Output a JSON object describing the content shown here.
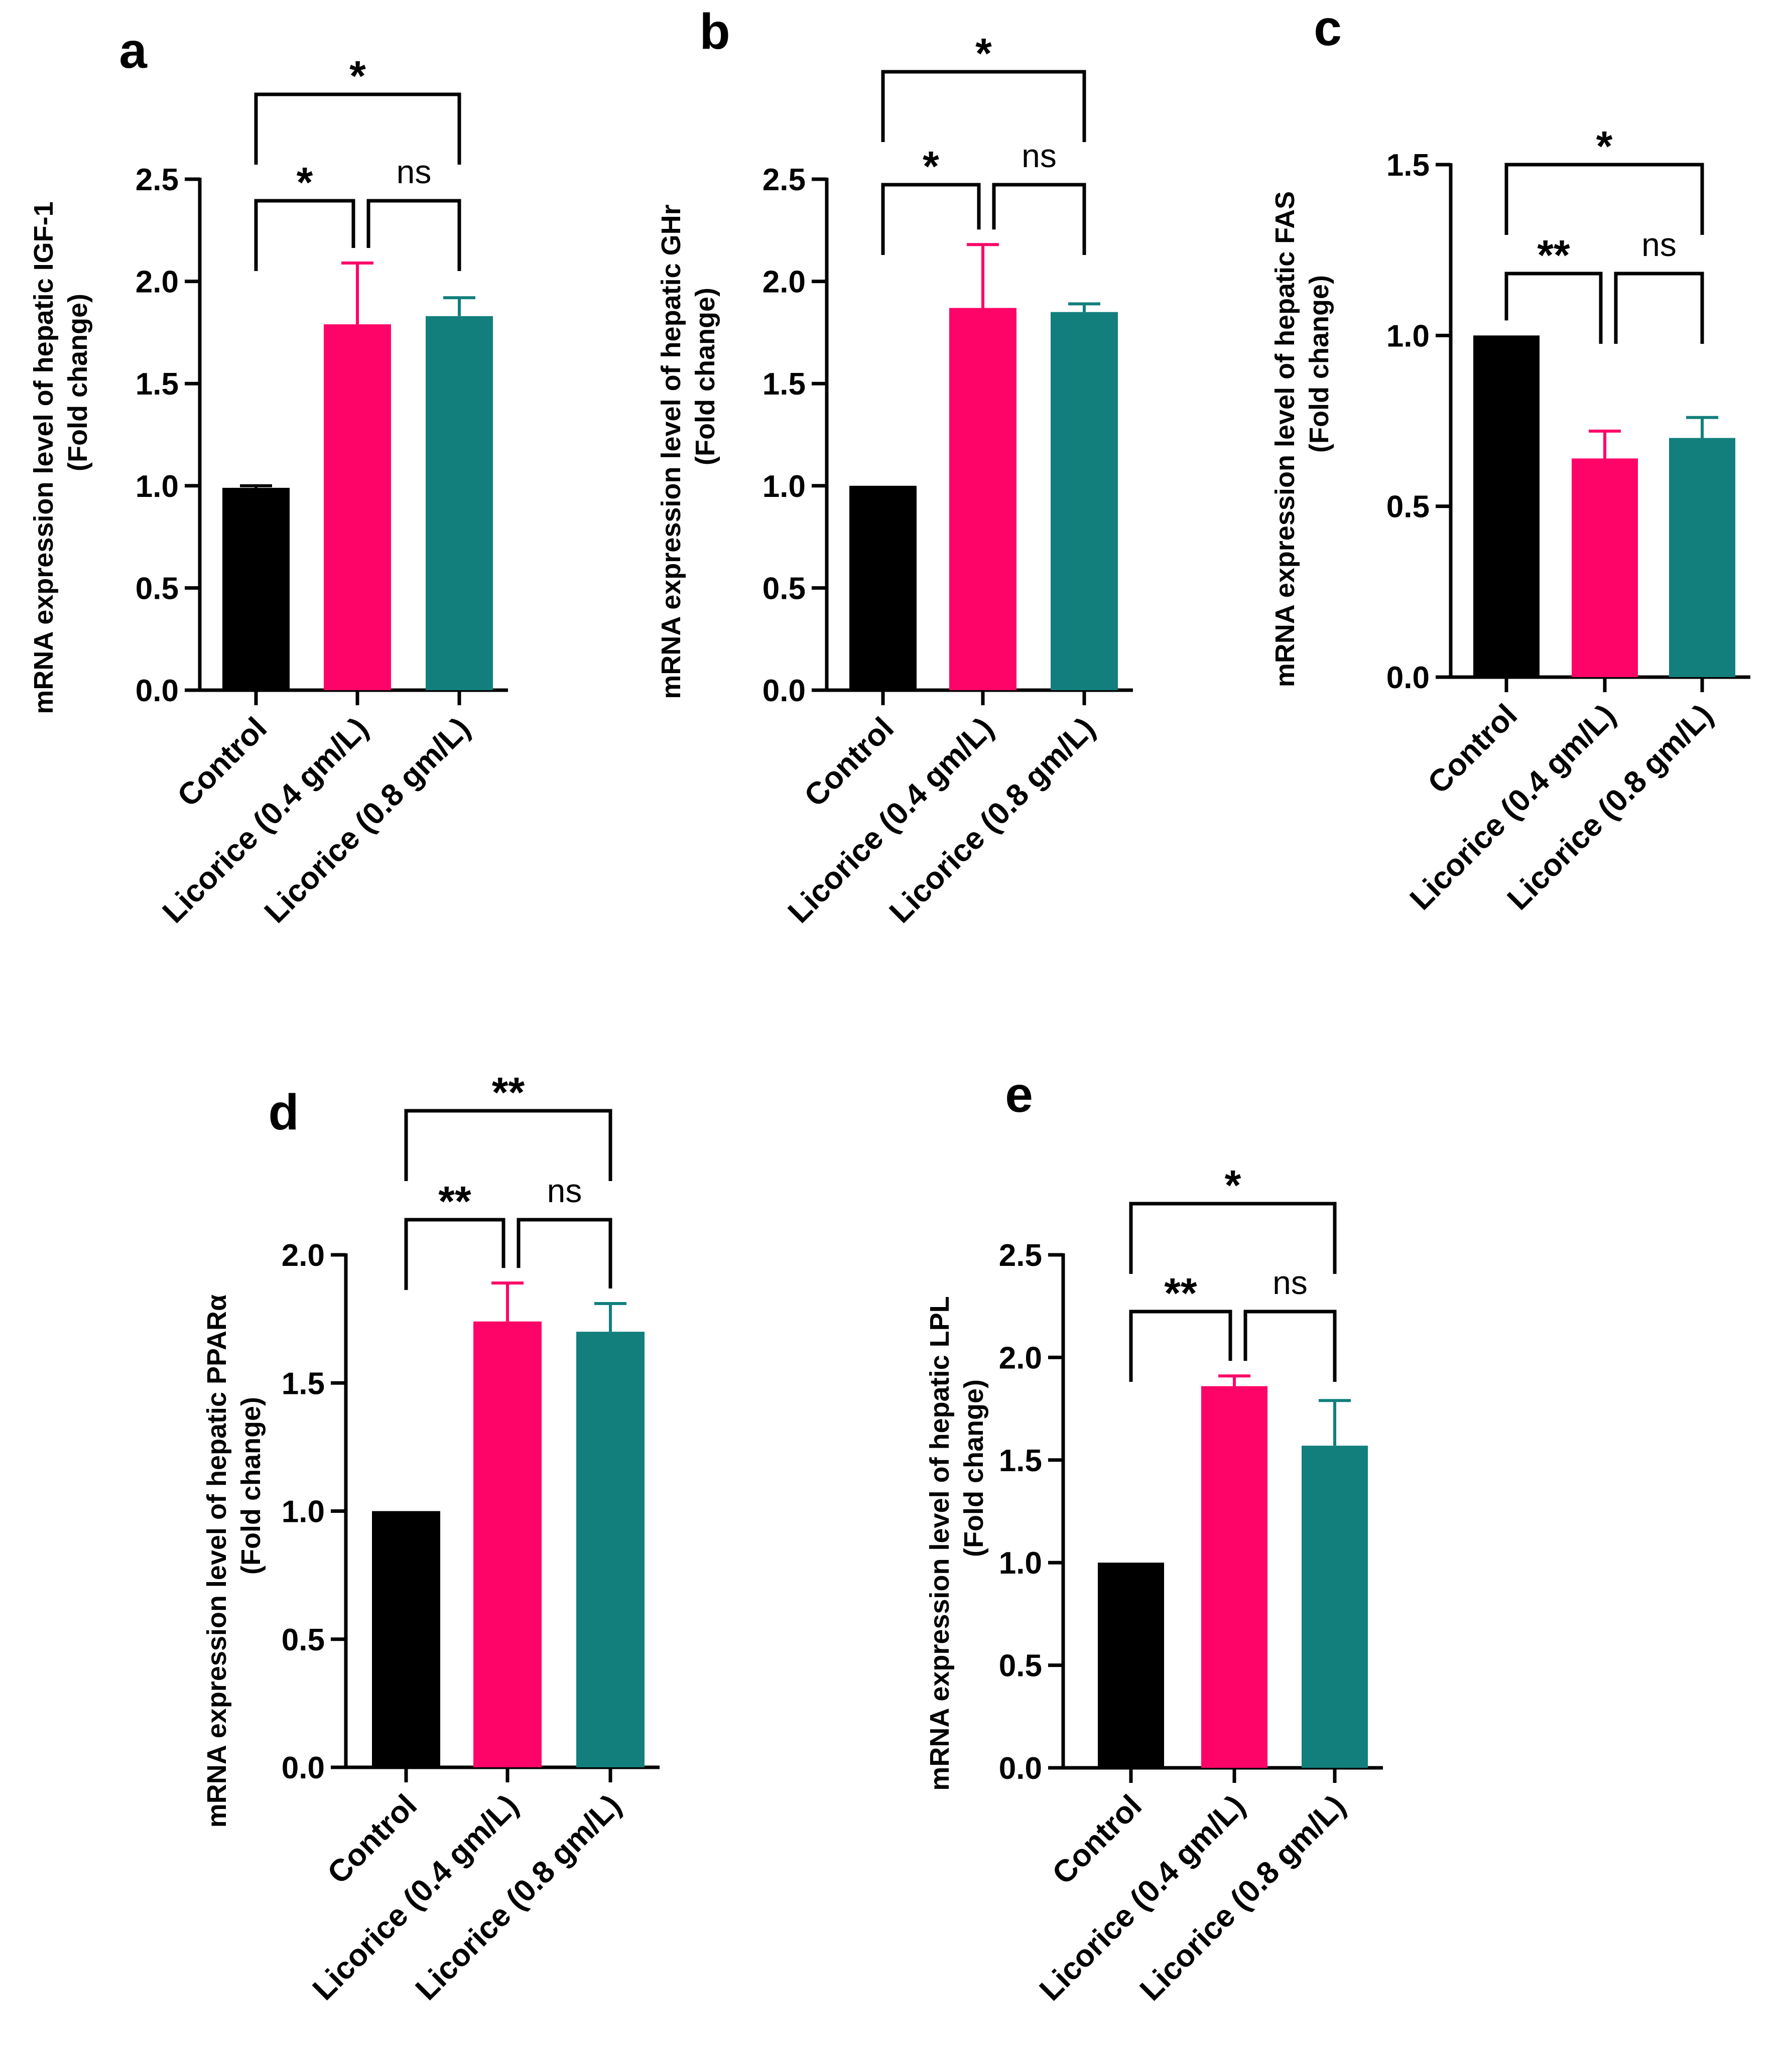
{
  "chart_data": [
    {
      "panel": "a",
      "type": "bar",
      "categories": [
        "Control",
        "Licorice (0.4 gm/L)",
        "Licorice (0.8 gm/L)"
      ],
      "values": [
        0.99,
        1.79,
        1.83
      ],
      "errors": [
        0.01,
        0.3,
        0.09
      ],
      "colors": [
        "#000000",
        "#fe0468",
        "#127f7c"
      ],
      "ylabel_line1": "mRNA expression level of  hepatic IGF-1",
      "ylabel_line2": "(Fold change)",
      "ylim": [
        0,
        2.5
      ],
      "yticks": [
        "0.0",
        "0.5",
        "1.0",
        "1.5",
        "2.0",
        "2.5"
      ],
      "comparisons": [
        {
          "from": 0,
          "to": 1,
          "label": "*"
        },
        {
          "from": 1,
          "to": 2,
          "label": "ns"
        },
        {
          "from": 0,
          "to": 2,
          "label": "*"
        }
      ]
    },
    {
      "panel": "b",
      "type": "bar",
      "categories": [
        "Control",
        "Licorice (0.4 gm/L)",
        "Licorice (0.8 gm/L)"
      ],
      "values": [
        1.0,
        1.87,
        1.85
      ],
      "errors": [
        0.0,
        0.31,
        0.04
      ],
      "colors": [
        "#000000",
        "#fe0468",
        "#127f7c"
      ],
      "ylabel_line1": "mRNA expression level of  hepatic GHr",
      "ylabel_line2": "(Fold change)",
      "ylim": [
        0,
        2.5
      ],
      "yticks": [
        "0.0",
        "0.5",
        "1.0",
        "1.5",
        "2.0",
        "2.5"
      ],
      "comparisons": [
        {
          "from": 0,
          "to": 1,
          "label": "*"
        },
        {
          "from": 1,
          "to": 2,
          "label": "ns"
        },
        {
          "from": 0,
          "to": 2,
          "label": "*"
        }
      ]
    },
    {
      "panel": "c",
      "type": "bar",
      "categories": [
        "Control",
        "Licorice (0.4 gm/L)",
        "Licorice (0.8 gm/L)"
      ],
      "values": [
        1.0,
        0.64,
        0.7
      ],
      "errors": [
        0.0,
        0.08,
        0.06
      ],
      "colors": [
        "#000000",
        "#fe0468",
        "#127f7c"
      ],
      "ylabel_line1": "mRNA expression level of  hepatic FAS",
      "ylabel_line2": "(Fold change)",
      "ylim": [
        0,
        1.5
      ],
      "yticks": [
        "0.0",
        "0.5",
        "1.0",
        "1.5"
      ],
      "comparisons": [
        {
          "from": 0,
          "to": 1,
          "label": "**"
        },
        {
          "from": 1,
          "to": 2,
          "label": "ns"
        },
        {
          "from": 0,
          "to": 2,
          "label": "*"
        }
      ]
    },
    {
      "panel": "d",
      "type": "bar",
      "categories": [
        "Control",
        "Licorice (0.4 gm/L)",
        "Licorice (0.8 gm/L)"
      ],
      "values": [
        1.0,
        1.74,
        1.7
      ],
      "errors": [
        0.0,
        0.15,
        0.11
      ],
      "colors": [
        "#000000",
        "#fe0468",
        "#127f7c"
      ],
      "ylabel_line1": "mRNA expression level of  hepatic PPARα",
      "ylabel_line2": "(Fold change)",
      "ylim": [
        0,
        2.0
      ],
      "yticks": [
        "0.0",
        "0.5",
        "1.0",
        "1.5",
        "2.0"
      ],
      "comparisons": [
        {
          "from": 0,
          "to": 1,
          "label": "**"
        },
        {
          "from": 1,
          "to": 2,
          "label": "ns"
        },
        {
          "from": 0,
          "to": 2,
          "label": "**"
        }
      ]
    },
    {
      "panel": "e",
      "type": "bar",
      "categories": [
        "Control",
        "Licorice (0.4 gm/L)",
        "Licorice (0.8 gm/L)"
      ],
      "values": [
        1.0,
        1.86,
        1.57
      ],
      "errors": [
        0.0,
        0.05,
        0.22
      ],
      "colors": [
        "#000000",
        "#fe0468",
        "#127f7c"
      ],
      "ylabel_line1": "mRNA expression level of  hepatic LPL",
      "ylabel_line2": "(Fold change)",
      "ylim": [
        0,
        2.5
      ],
      "yticks": [
        "0.0",
        "0.5",
        "1.0",
        "1.5",
        "2.0",
        "2.5"
      ],
      "comparisons": [
        {
          "from": 0,
          "to": 1,
          "label": "**"
        },
        {
          "from": 1,
          "to": 2,
          "label": "ns"
        },
        {
          "from": 0,
          "to": 2,
          "label": "*"
        }
      ]
    }
  ]
}
